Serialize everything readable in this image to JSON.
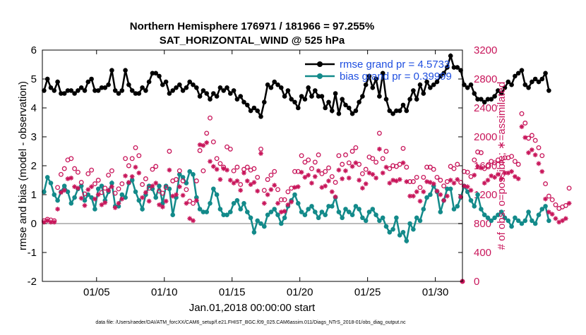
{
  "chart_data": {
    "type": "line",
    "title": [
      "Northern Hemisphere 176971 / 181966 = 97.255%",
      "SAT_HORIZONTAL_WIND @ 525 hPa"
    ],
    "xlabel": "Jan.01,2018 00:00:00 start",
    "ylabel_left": "rmse and bias (model - observation)",
    "ylabel_right": "# of obs: o=possible; ∗=assimilated",
    "footnote": "data file: /Users/raeder/DAI/ATM_forcXX/CAM6_setup/f.e21.FHIST_BGC.f09_025.CAM6assim.011/Diags_NTrS_2018-01/obs_diag_output.nc",
    "x_ticks": [
      {
        "day": 5,
        "label": "01/05"
      },
      {
        "day": 10,
        "label": "01/10"
      },
      {
        "day": 15,
        "label": "01/15"
      },
      {
        "day": 20,
        "label": "01/20"
      },
      {
        "day": 25,
        "label": "01/25"
      },
      {
        "day": 30,
        "label": "01/30"
      }
    ],
    "xlim": [
      1,
      32
    ],
    "ylim_left": [
      -2,
      6
    ],
    "ylim_right": [
      0,
      3200
    ],
    "y_ticks_left": [
      -2,
      -1,
      0,
      1,
      2,
      3,
      4,
      5,
      6
    ],
    "y_ticks_right": [
      0,
      400,
      800,
      1200,
      1600,
      2000,
      2400,
      2800,
      3200
    ],
    "grid": false,
    "legend": {
      "placement": "top-right",
      "entries": [
        {
          "label": "rmse grand pr = 4.5733",
          "color": "#000000"
        },
        {
          "label": "bias grand pr = 0.39999",
          "color": "#138a8a"
        }
      ]
    },
    "colors": {
      "rmse": "#000000",
      "bias": "#138a8a",
      "counts": "#c8155a",
      "zero_line": "#bbbbbb"
    },
    "time_step_days": 0.25,
    "time_start_day": 1.125,
    "series": [
      {
        "name": "rmse",
        "axis": "left",
        "values": [
          4.6,
          5.0,
          4.7,
          4.6,
          4.9,
          4.5,
          4.5,
          4.6,
          4.6,
          4.5,
          4.6,
          4.7,
          4.6,
          4.9,
          5.0,
          4.6,
          4.6,
          4.7,
          4.7,
          4.8,
          5.3,
          4.6,
          4.5,
          4.6,
          5.3,
          4.8,
          4.6,
          4.5,
          4.5,
          4.7,
          4.6,
          4.9,
          5.2,
          5.2,
          5.1,
          4.8,
          4.9,
          4.5,
          4.6,
          4.7,
          4.8,
          4.6,
          4.7,
          4.9,
          4.8,
          4.7,
          4.4,
          4.6,
          4.5,
          4.3,
          4.5,
          4.4,
          4.7,
          4.6,
          4.7,
          4.5,
          4.6,
          4.3,
          4.4,
          4.2,
          4.1,
          3.9,
          4.0,
          3.9,
          3.7,
          4.2,
          4.8,
          4.7,
          4.9,
          4.8,
          4.7,
          4.4,
          4.6,
          4.3,
          4.2,
          4.0,
          4.4,
          4.3,
          4.7,
          4.4,
          4.6,
          4.4,
          4.4,
          4.0,
          4.2,
          3.9,
          4.5,
          3.8,
          4.3,
          4.1,
          4.0,
          3.8,
          3.9,
          4.2,
          4.4,
          4.8,
          5.1,
          4.7,
          5.0,
          4.4,
          5.2,
          4.3,
          3.9,
          3.8,
          3.9,
          3.9,
          4.1,
          3.9,
          4.3,
          4.6,
          4.3,
          4.8,
          4.5,
          4.9,
          4.7,
          4.8,
          4.9,
          5.1,
          5.2,
          5.4,
          5.8,
          5.4,
          5.4,
          5.3,
          4.8,
          4.7,
          4.8,
          4.5,
          4.3,
          4.3,
          4.2,
          4.3,
          4.3,
          4.4,
          4.6,
          4.5,
          4.7,
          4.9,
          4.8,
          5.1,
          5.2,
          5.3,
          4.8,
          4.7,
          4.9,
          5.0,
          4.9,
          5.0,
          5.2,
          4.6
        ]
      },
      {
        "name": "bias",
        "axis": "left",
        "values": [
          1.1,
          1.6,
          1.4,
          1.0,
          0.8,
          1.1,
          1.3,
          1.1,
          0.7,
          0.9,
          1.2,
          1.3,
          0.8,
          1.0,
          0.9,
          0.5,
          1.2,
          1.3,
          0.8,
          1.1,
          1.4,
          0.6,
          0.6,
          1.0,
          0.9,
          1.4,
          1.5,
          1.1,
          0.8,
          0.5,
          1.0,
          1.3,
          1.2,
          0.9,
          1.3,
          0.7,
          1.3,
          1.2,
          0.3,
          0.9,
          1.7,
          1.6,
          1.4,
          1.8,
          1.7,
          0.9,
          0.5,
          0.4,
          0.4,
          0.7,
          1.2,
          1.0,
          0.5,
          0.3,
          0.3,
          0.4,
          0.7,
          0.8,
          0.5,
          0.7,
          0.4,
          0.2,
          -0.3,
          0.1,
          0.0,
          -0.1,
          0.3,
          0.4,
          0.5,
          0.3,
          0.0,
          0.2,
          0.6,
          0.8,
          1.0,
          0.7,
          0.4,
          0.3,
          0.5,
          0.6,
          0.4,
          0.2,
          0.4,
          0.3,
          0.6,
          0.6,
          0.9,
          0.4,
          0.2,
          0.5,
          0.4,
          0.3,
          0.6,
          0.5,
          0.2,
          0.1,
          0.4,
          0.5,
          0.3,
          0.1,
          0.2,
          -0.1,
          -0.3,
          -0.2,
          0.2,
          -0.4,
          -0.3,
          -0.6,
          0.0,
          -0.2,
          0.2,
          0.1,
          0.5,
          0.9,
          1.0,
          1.3,
          1.1,
          0.4,
          0.8,
          1.2,
          1.2,
          0.5,
          0.6,
          0.9,
          1.3,
          1.1,
          0.8,
          0.6,
          1.0,
          0.5,
          0.3,
          0.2,
          0.1,
          0.2,
          0.3,
          0.4,
          0.2,
          0.1,
          -0.1,
          0.2,
          0.1,
          0.0,
          0.1,
          0.4,
          0.1,
          0.0,
          0.3,
          0.5,
          0.6,
          0.1
        ]
      },
      {
        "name": "possible",
        "axis": "right",
        "values": [
          840,
          860,
          850,
          840,
          1300,
          1480,
          1560,
          1680,
          1700,
          1560,
          1510,
          1370,
          1210,
          1490,
          1540,
          1350,
          1400,
          1230,
          1290,
          1470,
          1530,
          1220,
          1280,
          1350,
          1700,
          1600,
          1700,
          1850,
          1740,
          1340,
          1420,
          1290,
          1550,
          1590,
          1250,
          1220,
          1300,
          1800,
          1390,
          1410,
          1530,
          1390,
          1270,
          1110,
          1080,
          1390,
          1810,
          1530,
          2050,
          2260,
          1930,
          1700,
          1630,
          1580,
          1860,
          1830,
          1530,
          1580,
          1340,
          1550,
          1580,
          1540,
          1560,
          1440,
          1830,
          1260,
          1410,
          1470,
          1520,
          1270,
          1130,
          1130,
          1240,
          1290,
          1520,
          1520,
          1740,
          1650,
          1680,
          1560,
          1650,
          1750,
          1490,
          1520,
          1570,
          1450,
          1370,
          1740,
          1620,
          1750,
          1640,
          1800,
          1850,
          1620,
          1490,
          1550,
          1720,
          1700,
          1650,
          2050,
          1700,
          1800,
          1560,
          1600,
          1590,
          1620,
          1840,
          1580,
          1380,
          1380,
          1440,
          1300,
          1440,
          1580,
          1580,
          1550,
          1440,
          1400,
          1320,
          1380,
          1590,
          1560,
          1620,
          1370,
          1520,
          1510,
          1450,
          1680,
          1790,
          1780,
          1560,
          1600,
          1660,
          1640,
          1680,
          1640,
          1710,
          1710,
          1730,
          1660,
          1620,
          2320,
          2190,
          1980,
          2020,
          1950,
          1850,
          1740,
          1350,
          1180,
          1130,
          1060,
          1010,
          1030,
          1050,
          1290
        ]
      },
      {
        "name": "assimilated",
        "axis": "right",
        "values": [
          820,
          840,
          820,
          820,
          1000,
          1230,
          1260,
          1420,
          1430,
          1310,
          1290,
          1150,
          1050,
          1270,
          1310,
          1140,
          1200,
          1060,
          1090,
          1260,
          1310,
          1020,
          1080,
          1140,
          1460,
          1370,
          1450,
          1580,
          1500,
          1160,
          1230,
          1110,
          1320,
          1360,
          1060,
          1030,
          1110,
          1540,
          1180,
          1200,
          1310,
          1190,
          1080,
          870,
          840,
          1120,
          1890,
          1880,
          1920,
          1660,
          1590,
          1550,
          1410,
          1560,
          1540,
          1400,
          1360,
          1390,
          1260,
          1500,
          1390,
          1340,
          1370,
          1250,
          1770,
          1080,
          1200,
          1270,
          1330,
          1080,
          960,
          970,
          1060,
          1100,
          1300,
          1310,
          1510,
          1440,
          1470,
          1360,
          1450,
          1530,
          1300,
          1320,
          1390,
          1240,
          1170,
          1540,
          1420,
          1530,
          1430,
          1590,
          1640,
          1400,
          1290,
          1350,
          1500,
          1480,
          1430,
          1830,
          1500,
          1580,
          1360,
          1400,
          1390,
          1410,
          1640,
          1380,
          1180,
          1180,
          1240,
          1110,
          1240,
          1380,
          1370,
          1350,
          1250,
          1200,
          1120,
          1180,
          1400,
          1360,
          1410,
          1170,
          1320,
          1310,
          1260,
          1470,
          1590,
          1570,
          1360,
          1400,
          1460,
          1440,
          1480,
          1420,
          1500,
          1500,
          1520,
          1450,
          1420,
          2140,
          1990,
          1780,
          1820,
          1750,
          1630,
          1520,
          1140,
          960,
          930,
          870,
          820,
          840,
          870,
          1080
        ]
      }
    ]
  }
}
